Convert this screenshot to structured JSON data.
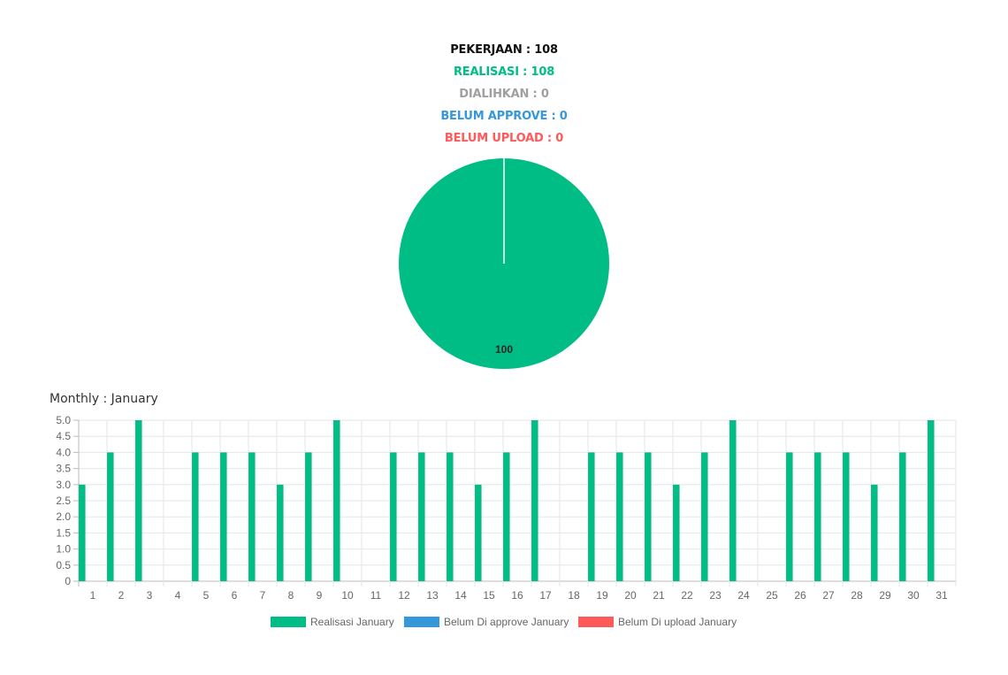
{
  "summary": {
    "pekerjaan": "PEKERJAAN : 108",
    "realisasi": "REALISASI : 108",
    "dialihkan": "DIALIHKAN : 0",
    "belum_approve": "BELUM APPROVE : 0",
    "belum_upload": "BELUM UPLOAD : 0"
  },
  "colors": {
    "realisasi": "#00bd86",
    "approve": "#3498db",
    "upload": "#ff5a5a",
    "dialihkan": "#a0a0a0",
    "pekerjaan": "#111111"
  },
  "pie": {
    "label": "100",
    "values": [
      100,
      0,
      0
    ]
  },
  "monthly_title": "Monthly : January",
  "chart_data": {
    "type": "bar",
    "categories": [
      "1",
      "2",
      "3",
      "4",
      "5",
      "6",
      "7",
      "8",
      "9",
      "10",
      "11",
      "12",
      "13",
      "14",
      "15",
      "16",
      "17",
      "18",
      "19",
      "20",
      "21",
      "22",
      "23",
      "24",
      "25",
      "26",
      "27",
      "28",
      "29",
      "30",
      "31"
    ],
    "series": [
      {
        "name": "Realisasi January",
        "values": [
          3,
          4,
          5,
          0,
          4,
          4,
          4,
          3,
          4,
          5,
          0,
          4,
          4,
          4,
          3,
          4,
          5,
          0,
          4,
          4,
          4,
          3,
          4,
          5,
          0,
          4,
          4,
          4,
          3,
          4,
          5
        ]
      },
      {
        "name": "Belum Di approve January",
        "values": [
          0,
          0,
          0,
          0,
          0,
          0,
          0,
          0,
          0,
          0,
          0,
          0,
          0,
          0,
          0,
          0,
          0,
          0,
          0,
          0,
          0,
          0,
          0,
          0,
          0,
          0,
          0,
          0,
          0,
          0,
          0
        ]
      },
      {
        "name": "Belum Di upload January",
        "values": [
          0,
          0,
          0,
          0,
          0,
          0,
          0,
          0,
          0,
          0,
          0,
          0,
          0,
          0,
          0,
          0,
          0,
          0,
          0,
          0,
          0,
          0,
          0,
          0,
          0,
          0,
          0,
          0,
          0,
          0,
          0
        ]
      }
    ],
    "yticks": [
      "0",
      "0.5",
      "1.0",
      "1.5",
      "2.0",
      "2.5",
      "3.0",
      "3.5",
      "4.0",
      "4.5",
      "5.0"
    ],
    "ylim": [
      0,
      5
    ],
    "grid": true,
    "legend": "bottom"
  }
}
